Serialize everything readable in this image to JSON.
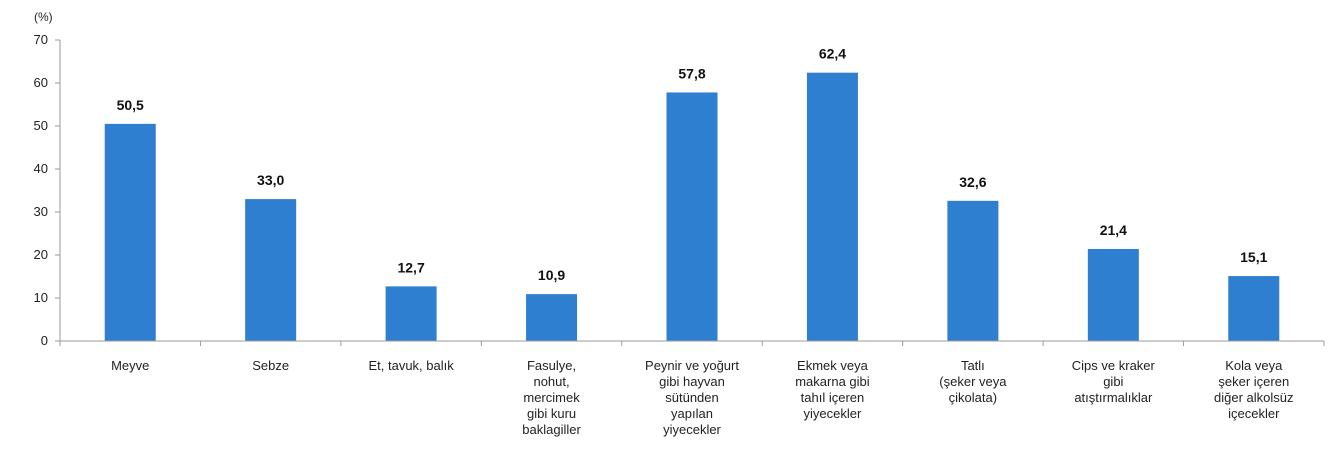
{
  "chart_data": {
    "type": "bar",
    "unit": "(%)",
    "categories": [
      [
        "Meyve"
      ],
      [
        "Sebze"
      ],
      [
        "Et, tavuk, balık"
      ],
      [
        "Fasulye,",
        "nohut,",
        "mercimek",
        "gibi kuru",
        "baklagiller"
      ],
      [
        "Peynir ve yoğurt",
        "gibi hayvan",
        "sütünden",
        "yapılan",
        "yiyecekler"
      ],
      [
        "Ekmek veya",
        "makarna gibi",
        "tahıl içeren",
        "yiyecekler"
      ],
      [
        "Tatlı",
        "(şeker veya",
        "çikolata)"
      ],
      [
        "Cips ve kraker",
        "gibi",
        "atıştırmalıklar"
      ],
      [
        "Kola veya",
        "şeker içeren",
        "diğer alkolsüz",
        "içecekler"
      ]
    ],
    "values": [
      50.5,
      33.0,
      12.7,
      10.9,
      57.8,
      62.4,
      32.6,
      21.4,
      15.1
    ],
    "value_labels": [
      "50,5",
      "33,0",
      "12,7",
      "10,9",
      "57,8",
      "62,4",
      "32,6",
      "21,4",
      "15,1"
    ],
    "y_ticks": [
      0,
      10,
      20,
      30,
      40,
      50,
      60,
      70
    ],
    "ylim": [
      0,
      70
    ],
    "bar_color": "#2e7fcf",
    "axis_color": "#9a9a9a",
    "grid": false,
    "legend": "none"
  }
}
